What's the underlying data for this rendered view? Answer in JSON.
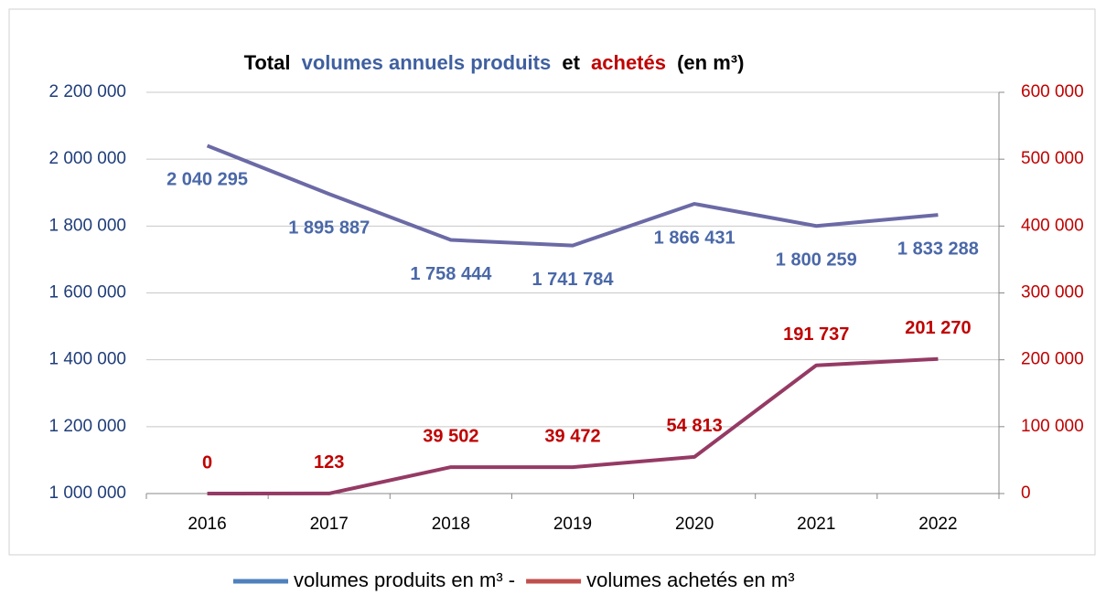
{
  "chart_data": {
    "type": "line",
    "title": [
      "Total",
      "volumes annuels produits",
      "et",
      "achetés",
      "(en m³)"
    ],
    "categories": [
      "2016",
      "2017",
      "2018",
      "2019",
      "2020",
      "2021",
      "2022"
    ],
    "series": [
      {
        "name": "volumes produits en m³ -",
        "color": "#6b6aa6",
        "legend_color": "#4f81bd",
        "label_color": "#4a68a8",
        "values": [
          2040295,
          1895887,
          1758444,
          1741784,
          1866431,
          1800259,
          1833288
        ],
        "value_labels": [
          "2 040 295",
          "1 895 887",
          "1 758 444",
          "1 741 784",
          "1 866 431",
          "1 800 259",
          "1 833 288"
        ]
      },
      {
        "name": "volumes achetés en m³",
        "color": "#953a64",
        "legend_color": "#c0504d",
        "label_color": "#c00000",
        "axis": "y2",
        "values": [
          0,
          123,
          39502,
          39472,
          54813,
          191737,
          201270
        ],
        "value_labels": [
          "0",
          "123",
          "39 502",
          "39 472",
          "54 813",
          "191 737",
          "201 270"
        ]
      }
    ],
    "ylim": [
      1000000,
      2200000
    ],
    "yticks": [
      {
        "value": 1000000,
        "label": "1 000 000"
      },
      {
        "value": 1200000,
        "label": "1 200 000"
      },
      {
        "value": 1400000,
        "label": "1 400 000"
      },
      {
        "value": 1600000,
        "label": "1 600 000"
      },
      {
        "value": 1800000,
        "label": "1 800 000"
      },
      {
        "value": 2000000,
        "label": "2 000 000"
      },
      {
        "value": 2200000,
        "label": "2 200 000"
      }
    ],
    "y2lim": [
      0,
      600000
    ],
    "y2ticks": [
      0,
      {
        "value": 100000,
        "label": "100 000"
      },
      {
        "value": 200000,
        "label": "200 000"
      },
      {
        "value": 300000,
        "label": "300 000"
      },
      {
        "value": 400000,
        "label": "400 000"
      },
      {
        "value": 500000,
        "label": "500 000"
      },
      {
        "value": 600000,
        "label": "600 000"
      }
    ],
    "grid": true,
    "legend": "bottom"
  }
}
